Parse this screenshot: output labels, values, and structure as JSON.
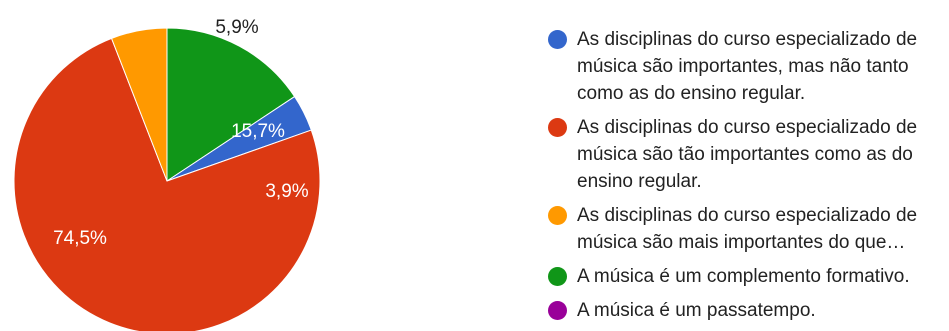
{
  "chart_data": {
    "type": "pie",
    "title": "",
    "start_angle_deg": 90,
    "direction": "clockwise",
    "slices": [
      {
        "label": "As disciplinas do curso especializado de música são importantes, mas não tanto como as do ensino regular.",
        "value": 3.9,
        "display": "3,9%",
        "color": "#3366cc"
      },
      {
        "label": "As disciplinas do curso especializado de música são tão importantes como as do ensino regular.",
        "value": 74.5,
        "display": "74,5%",
        "color": "#dc3912"
      },
      {
        "label": "As disciplinas do curso especializado de música são mais importantes do que…",
        "value": 5.9,
        "display": "5,9%",
        "color": "#ff9900"
      },
      {
        "label": "A música é um complemento formativo.",
        "value": 15.7,
        "display": "15,7%",
        "color": "#109618"
      },
      {
        "label": "A música é um passatempo.",
        "value": 0,
        "display": "",
        "color": "#990099"
      }
    ],
    "slice_order_clockwise_from_top": [
      3,
      0,
      1,
      2
    ],
    "label_colors": [
      "#ffffff",
      "#ffffff",
      "#222222",
      "#ffffff"
    ],
    "legend_position": "right"
  }
}
